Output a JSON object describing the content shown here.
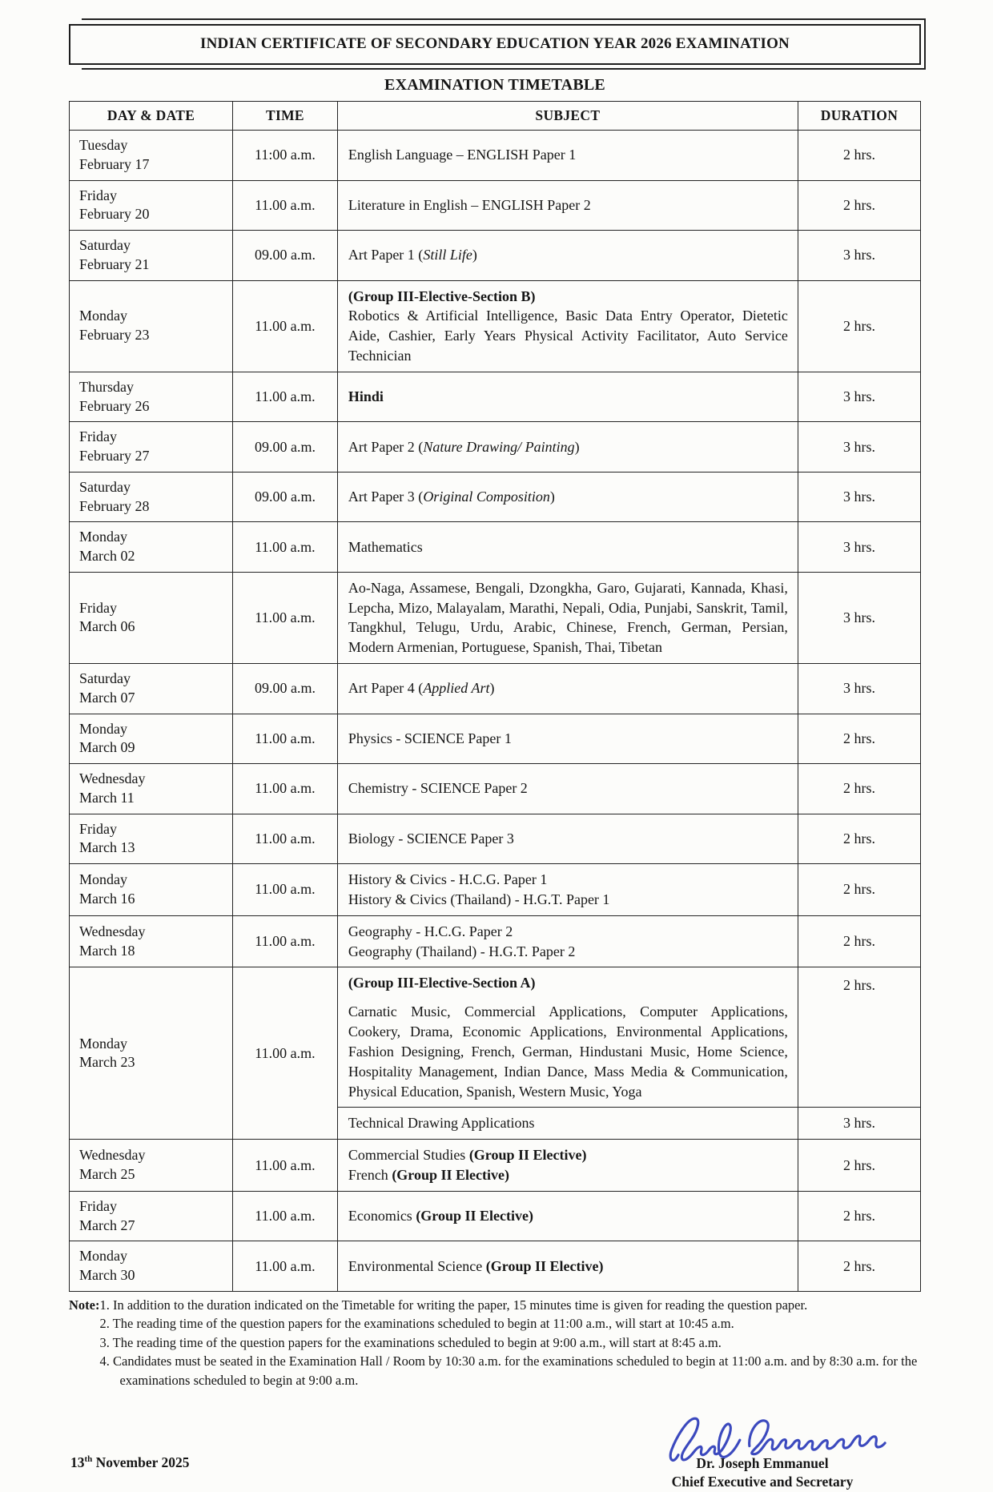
{
  "page": {
    "title": "INDIAN CERTIFICATE OF SECONDARY EDUCATION YEAR 2026 EXAMINATION",
    "subtitle": "EXAMINATION TIMETABLE"
  },
  "table": {
    "headers": [
      "DAY & DATE",
      "TIME",
      "SUBJECT",
      "DURATION"
    ]
  },
  "rows": [
    {
      "day": [
        "Tuesday",
        "February 17"
      ],
      "time": "11:00 a.m.",
      "subject": [
        {
          "runs": [
            {
              "t": "English Language – ENGLISH Paper 1"
            }
          ]
        }
      ],
      "duration": "2 hrs."
    },
    {
      "day": [
        "Friday",
        "February 20"
      ],
      "time": "11.00 a.m.",
      "subject": [
        {
          "runs": [
            {
              "t": "Literature in English – ENGLISH Paper 2"
            }
          ]
        }
      ],
      "duration": "2 hrs."
    },
    {
      "day": [
        "Saturday",
        "February 21"
      ],
      "time": "09.00 a.m.",
      "subject": [
        {
          "runs": [
            {
              "t": "Art Paper 1 ("
            },
            {
              "t": "Still Life",
              "i": 1
            },
            {
              "t": ")"
            }
          ]
        }
      ],
      "duration": "3 hrs."
    },
    {
      "day": [
        "Monday",
        "February 23"
      ],
      "time": "11.00 a.m.",
      "subject": [
        {
          "runs": [
            {
              "t": "(Group III-Elective-Section B)",
              "b": 1
            }
          ]
        },
        {
          "justify": 1,
          "runs": [
            {
              "t": "Robotics & Artificial Intelligence, Basic Data Entry Operator, Dietetic Aide, Cashier, Early Years Physical Activity Facilitator, Auto Service Technician"
            }
          ]
        }
      ],
      "duration": "2 hrs."
    },
    {
      "day": [
        "Thursday",
        "February 26"
      ],
      "time": "11.00 a.m.",
      "subject": [
        {
          "runs": [
            {
              "t": "Hindi",
              "b": 1
            }
          ]
        }
      ],
      "duration": "3 hrs."
    },
    {
      "day": [
        "Friday",
        "February 27"
      ],
      "time": "09.00 a.m.",
      "subject": [
        {
          "runs": [
            {
              "t": "Art Paper 2 ("
            },
            {
              "t": "Nature Drawing/ Painting",
              "i": 1
            },
            {
              "t": ")"
            }
          ]
        }
      ],
      "duration": "3 hrs."
    },
    {
      "day": [
        "Saturday",
        "February 28"
      ],
      "time": "09.00 a.m.",
      "subject": [
        {
          "runs": [
            {
              "t": "Art Paper 3 ("
            },
            {
              "t": "Original Composition",
              "i": 1
            },
            {
              "t": ")"
            }
          ]
        }
      ],
      "duration": "3 hrs."
    },
    {
      "day": [
        "Monday",
        "March 02"
      ],
      "time": "11.00 a.m.",
      "subject": [
        {
          "runs": [
            {
              "t": "Mathematics"
            }
          ]
        }
      ],
      "duration": "3 hrs."
    },
    {
      "day": [
        "Friday",
        "March 06"
      ],
      "time": "11.00 a.m.",
      "subject": [
        {
          "justify": 1,
          "runs": [
            {
              "t": "Ao-Naga, Assamese, Bengali, Dzongkha, Garo, Gujarati, Kannada, Khasi, Lepcha, Mizo, Malayalam, Marathi, Nepali, Odia, Punjabi, Sanskrit, Tamil, Tangkhul, Telugu, Urdu, Arabic, Chinese, French, German, Persian, Modern Armenian, Portuguese, Spanish, Thai, Tibetan"
            }
          ]
        }
      ],
      "duration": "3 hrs."
    },
    {
      "day": [
        "Saturday",
        "March 07"
      ],
      "time": "09.00 a.m.",
      "subject": [
        {
          "runs": [
            {
              "t": "Art Paper 4 ("
            },
            {
              "t": "Applied Art",
              "i": 1
            },
            {
              "t": ")"
            }
          ]
        }
      ],
      "duration": "3 hrs."
    },
    {
      "day": [
        "Monday",
        "March 09"
      ],
      "time": "11.00 a.m.",
      "subject": [
        {
          "runs": [
            {
              "t": "Physics - SCIENCE Paper 1"
            }
          ]
        }
      ],
      "duration": "2 hrs."
    },
    {
      "day": [
        "Wednesday",
        "March 11"
      ],
      "time": "11.00 a.m.",
      "subject": [
        {
          "runs": [
            {
              "t": "Chemistry - SCIENCE Paper 2"
            }
          ]
        }
      ],
      "duration": "2 hrs."
    },
    {
      "day": [
        "Friday",
        "March 13"
      ],
      "time": "11.00 a.m.",
      "subject": [
        {
          "runs": [
            {
              "t": "Biology - SCIENCE Paper 3"
            }
          ]
        }
      ],
      "duration": "2 hrs."
    },
    {
      "day": [
        "Monday",
        "March 16"
      ],
      "time": "11.00 a.m.",
      "subject": [
        {
          "runs": [
            {
              "t": "History & Civics - H.C.G. Paper 1"
            }
          ]
        },
        {
          "runs": [
            {
              "t": "History & Civics (Thailand) - H.G.T. Paper 1"
            }
          ]
        }
      ],
      "duration": "2 hrs."
    },
    {
      "day": [
        "Wednesday",
        "March 18"
      ],
      "time": "11.00 a.m.",
      "subject": [
        {
          "runs": [
            {
              "t": "Geography - H.C.G. Paper 2"
            }
          ]
        },
        {
          "runs": [
            {
              "t": "Geography (Thailand) - H.G.T. Paper 2"
            }
          ]
        }
      ],
      "duration": "2 hrs."
    },
    {
      "day": [
        "Monday",
        "March 23"
      ],
      "time": "11.00 a.m.",
      "split": true,
      "duration_top": true,
      "subject": [
        {
          "runs": [
            {
              "t": "(Group III-Elective-Section A)",
              "b": 1
            }
          ]
        },
        {
          "justify": 1,
          "gap": 1,
          "runs": [
            {
              "t": "Carnatic Music, Commercial Applications, Computer Applications, Cookery, Drama, Economic Applications, Environmental Applications, Fashion Designing, French, German, Hindustani Music, Home Science, Hospitality Management, Indian Dance, Mass Media & Communication, Physical Education, Spanish, Western Music, Yoga"
            }
          ]
        }
      ],
      "duration": "2 hrs.",
      "subject2": [
        {
          "runs": [
            {
              "t": "Technical Drawing Applications"
            }
          ]
        }
      ],
      "duration2": "3 hrs."
    },
    {
      "day": [
        "Wednesday",
        "March 25"
      ],
      "time": "11.00 a.m.",
      "subject": [
        {
          "runs": [
            {
              "t": "Commercial Studies "
            },
            {
              "t": "(Group II Elective)",
              "b": 1
            }
          ]
        },
        {
          "runs": [
            {
              "t": "French "
            },
            {
              "t": "(Group II Elective)",
              "b": 1
            }
          ]
        }
      ],
      "duration": "2 hrs."
    },
    {
      "day": [
        "Friday",
        "March 27"
      ],
      "time": "11.00 a.m.",
      "subject": [
        {
          "runs": [
            {
              "t": "Economics "
            },
            {
              "t": "(Group II Elective)",
              "b": 1
            }
          ]
        }
      ],
      "duration": "2 hrs."
    },
    {
      "day": [
        "Monday",
        "March 30"
      ],
      "time": "11.00 a.m.",
      "subject": [
        {
          "runs": [
            {
              "t": "Environmental Science "
            },
            {
              "t": "(Group II Elective)",
              "b": 1
            }
          ]
        }
      ],
      "duration": "2 hrs."
    }
  ],
  "notes": {
    "label": "Note:",
    "items": [
      {
        "num": "1.",
        "text": "In addition to the duration indicated on the Timetable for writing the paper, 15 minutes time is given for reading the question paper."
      },
      {
        "num": "2.",
        "text": "The reading time of the question papers for the examinations scheduled to begin at 11:00 a.m., will start at 10:45 a.m."
      },
      {
        "num": "3.",
        "text": "The reading time of the question papers for the examinations scheduled to begin at 9:00 a.m., will start at 8:45 a.m."
      },
      {
        "num": "4.",
        "text": "Candidates must be seated in the Examination Hall / Room by 10:30 a.m. for the examinations scheduled to begin at 11:00 a.m. and by 8:30 a.m. for the examinations scheduled to begin at 9:00 a.m."
      }
    ]
  },
  "footer": {
    "date": {
      "number": "13",
      "suffix": "th",
      "rest": " November 2025"
    },
    "signatory": {
      "name": "Dr. Joseph Emmanuel",
      "title": "Chief Executive and Secretary"
    },
    "signature_color": "#2a3ab8"
  }
}
